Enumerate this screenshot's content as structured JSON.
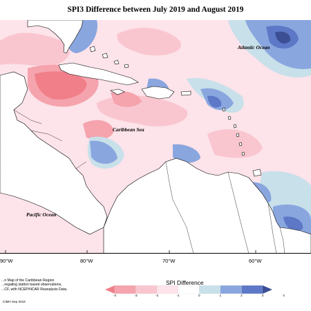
{
  "title": "SPI3 Difference between July 2019 and August 2019",
  "ocean_labels": {
    "atlantic": "Atlantic Ocean",
    "caribbean": "Caribbean Sea",
    "pacific": "Pacific Ocean"
  },
  "longitude_ticks": [
    "90°W",
    "80°W",
    "70°W",
    "60°W"
  ],
  "legend": {
    "title": "SPI Difference",
    "ticks": [
      "-4",
      "-3",
      "-2",
      "-1",
      "0",
      "1",
      "2",
      "3",
      "4"
    ],
    "colors": [
      "#f07f8a",
      "#f5a3ad",
      "#f9c6cf",
      "#fde3ea",
      "#ffffff",
      "#c8e0ea",
      "#8aa6df",
      "#5d78c6",
      "#3c4f94"
    ]
  },
  "caption_lines": [
    "...n Map of the Caribbean Region",
    "...regating station based observations,",
    "...CF, with NCEP/NCAR Reanalysis Data."
  ],
  "credit": "CIMH Sep 2019",
  "colors": {
    "land": "#ffffff",
    "coast": "#000000",
    "deep_red": "#f07f8a",
    "red": "#f5a3ad",
    "pink": "#f9c6cf",
    "light_pink": "#fde3ea",
    "light_blue": "#c8e0ea",
    "blue": "#8aa6df",
    "dark_blue": "#5d78c6",
    "navy": "#3c4f94"
  }
}
